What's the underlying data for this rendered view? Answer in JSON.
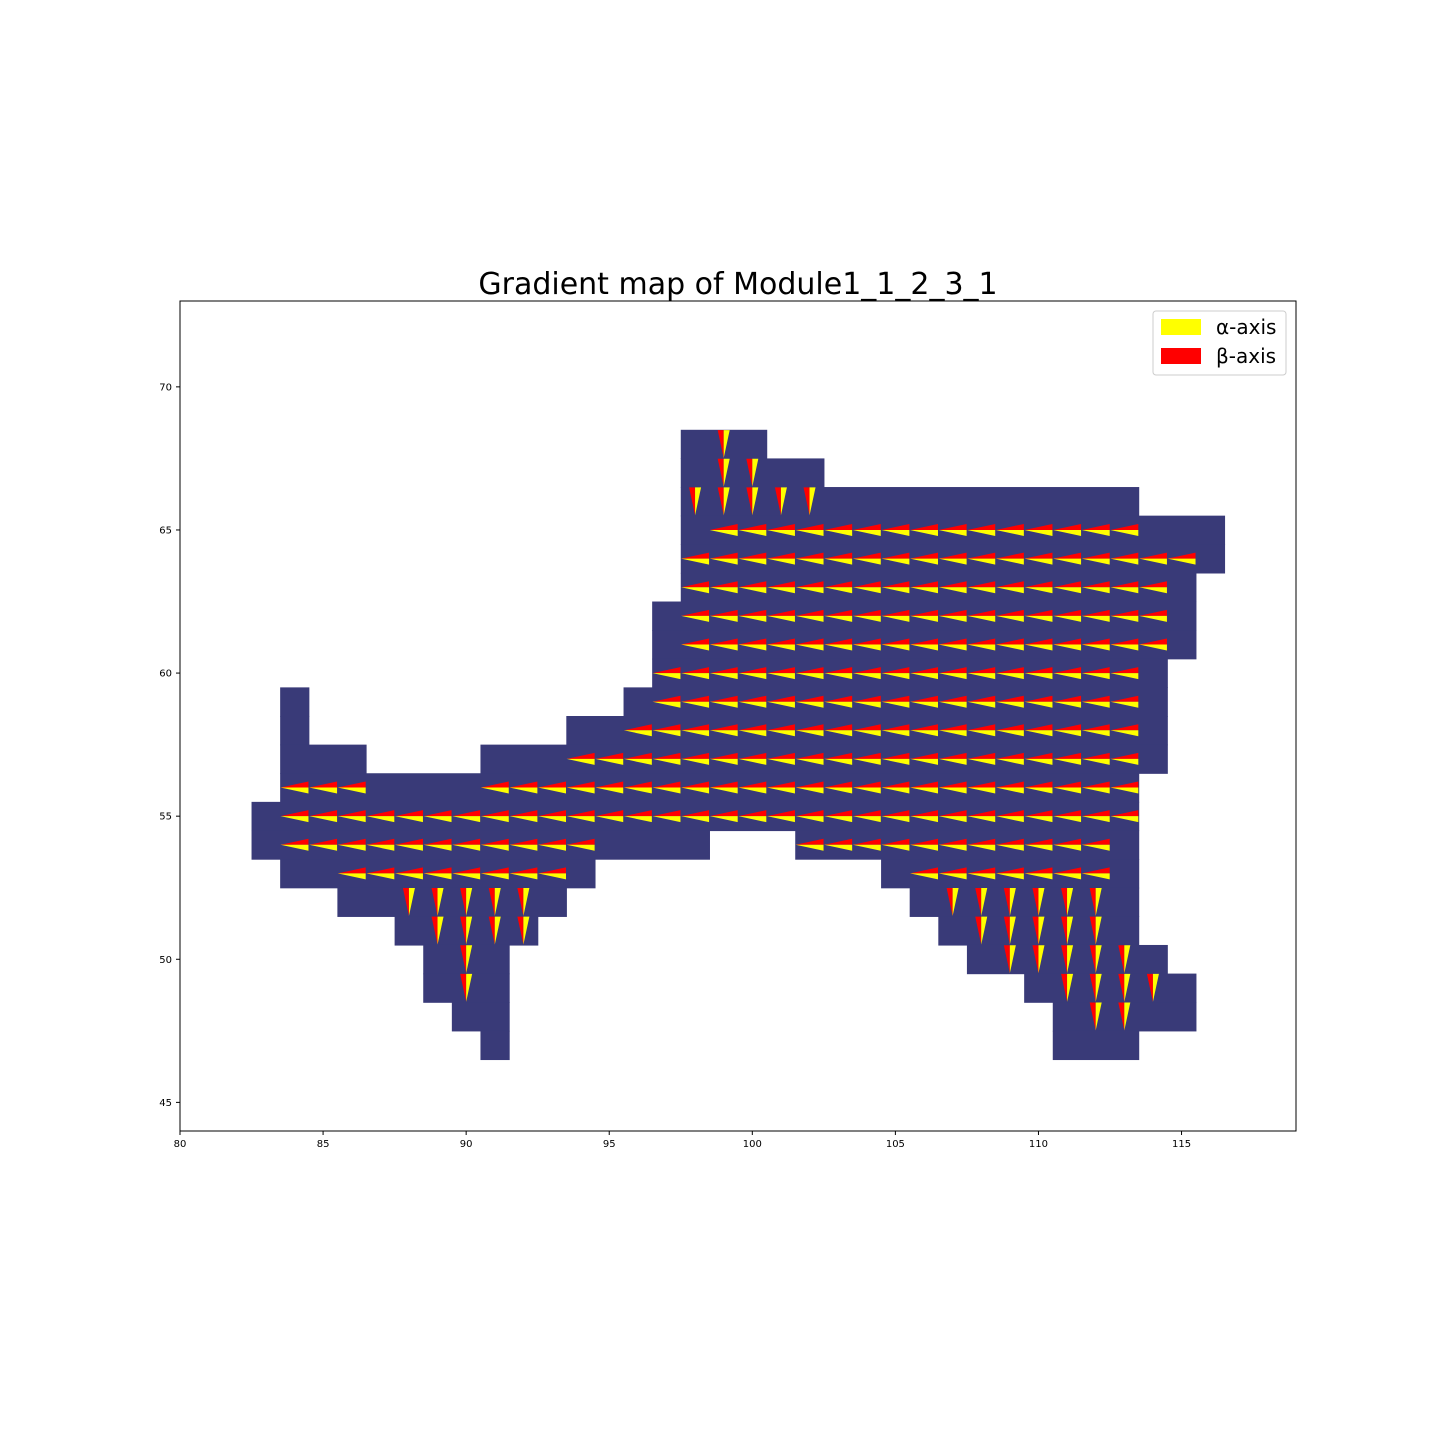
{
  "chart_data": {
    "type": "quiver-map",
    "title": "Gradient map of Module1_1_2_3_1",
    "xlabel": "",
    "ylabel": "",
    "xlim": [
      80,
      119
    ],
    "ylim": [
      44,
      73
    ],
    "xticks": [
      80,
      85,
      90,
      95,
      100,
      105,
      110,
      115
    ],
    "yticks": [
      45,
      50,
      55,
      60,
      65,
      70
    ],
    "grid": false,
    "legend": {
      "position": "top-right",
      "entries": [
        {
          "label": "α-axis",
          "color": "#ffff00"
        },
        {
          "label": "β-axis",
          "color": "#ff0000"
        }
      ]
    },
    "region_color": "#393a78",
    "region_rows": [
      {
        "y": 68,
        "x_ranges": [
          [
            97.5,
            100.5
          ]
        ]
      },
      {
        "y": 67,
        "x_ranges": [
          [
            97.5,
            102.5
          ]
        ]
      },
      {
        "y": 66,
        "x_ranges": [
          [
            97.5,
            113.5
          ]
        ]
      },
      {
        "y": 65,
        "x_ranges": [
          [
            97.5,
            116.5
          ]
        ]
      },
      {
        "y": 64,
        "x_ranges": [
          [
            97.5,
            116.5
          ]
        ]
      },
      {
        "y": 63,
        "x_ranges": [
          [
            97.5,
            115.5
          ]
        ]
      },
      {
        "y": 62,
        "x_ranges": [
          [
            96.5,
            115.5
          ]
        ]
      },
      {
        "y": 61,
        "x_ranges": [
          [
            96.5,
            115.5
          ]
        ]
      },
      {
        "y": 60,
        "x_ranges": [
          [
            96.5,
            114.5
          ]
        ]
      },
      {
        "y": 59,
        "x_ranges": [
          [
            83.5,
            84.5
          ],
          [
            95.5,
            114.5
          ]
        ]
      },
      {
        "y": 58,
        "x_ranges": [
          [
            83.5,
            84.5
          ],
          [
            93.5,
            114.5
          ]
        ]
      },
      {
        "y": 57,
        "x_ranges": [
          [
            83.5,
            86.5
          ],
          [
            90.5,
            114.5
          ]
        ]
      },
      {
        "y": 56,
        "x_ranges": [
          [
            83.5,
            113.5
          ]
        ]
      },
      {
        "y": 55,
        "x_ranges": [
          [
            82.5,
            113.5
          ]
        ]
      },
      {
        "y": 54,
        "x_ranges": [
          [
            82.5,
            98.5
          ],
          [
            101.5,
            113.5
          ]
        ]
      },
      {
        "y": 53,
        "x_ranges": [
          [
            83.5,
            94.5
          ],
          [
            104.5,
            113.5
          ]
        ]
      },
      {
        "y": 52,
        "x_ranges": [
          [
            85.5,
            93.5
          ],
          [
            105.5,
            113.5
          ]
        ]
      },
      {
        "y": 51,
        "x_ranges": [
          [
            87.5,
            92.5
          ],
          [
            106.5,
            113.5
          ]
        ]
      },
      {
        "y": 50,
        "x_ranges": [
          [
            88.5,
            91.5
          ],
          [
            107.5,
            114.5
          ]
        ]
      },
      {
        "y": 49,
        "x_ranges": [
          [
            88.5,
            91.5
          ],
          [
            109.5,
            115.5
          ]
        ]
      },
      {
        "y": 48,
        "x_ranges": [
          [
            89.5,
            91.5
          ],
          [
            110.5,
            115.5
          ]
        ]
      },
      {
        "y": 47,
        "x_ranges": [
          [
            90.5,
            91.5
          ],
          [
            110.5,
            113.5
          ]
        ]
      }
    ],
    "arrow_rows": [
      {
        "y": 68,
        "x_ranges": [
          [
            99,
            99
          ]
        ],
        "direction": "down"
      },
      {
        "y": 67,
        "x_ranges": [
          [
            99,
            100
          ]
        ],
        "direction": "down"
      },
      {
        "y": 66,
        "x_ranges": [
          [
            98,
            102
          ]
        ],
        "direction": "down"
      },
      {
        "y": 65,
        "x_ranges": [
          [
            99,
            113
          ]
        ],
        "direction": "left"
      },
      {
        "y": 64,
        "x_ranges": [
          [
            98,
            115
          ]
        ],
        "direction": "left"
      },
      {
        "y": 63,
        "x_ranges": [
          [
            98,
            114
          ]
        ],
        "direction": "left"
      },
      {
        "y": 62,
        "x_ranges": [
          [
            98,
            114
          ]
        ],
        "direction": "left"
      },
      {
        "y": 61,
        "x_ranges": [
          [
            98,
            114
          ]
        ],
        "direction": "left"
      },
      {
        "y": 60,
        "x_ranges": [
          [
            97,
            113
          ]
        ],
        "direction": "left"
      },
      {
        "y": 59,
        "x_ranges": [
          [
            97,
            113
          ]
        ],
        "direction": "left"
      },
      {
        "y": 58,
        "x_ranges": [
          [
            96,
            113
          ]
        ],
        "direction": "left"
      },
      {
        "y": 57,
        "x_ranges": [
          [
            94,
            113
          ]
        ],
        "direction": "left"
      },
      {
        "y": 56,
        "x_ranges": [
          [
            84,
            86
          ],
          [
            91,
            113
          ]
        ],
        "direction": "left"
      },
      {
        "y": 55,
        "x_ranges": [
          [
            84,
            113
          ]
        ],
        "direction": "left"
      },
      {
        "y": 54,
        "x_ranges": [
          [
            84,
            94
          ],
          [
            102,
            112
          ]
        ],
        "direction": "left"
      },
      {
        "y": 53,
        "x_ranges": [
          [
            86,
            93
          ],
          [
            106,
            112
          ]
        ],
        "direction": "left"
      },
      {
        "y": 52,
        "x_ranges": [
          [
            88,
            92
          ],
          [
            107,
            112
          ]
        ],
        "direction": "down"
      },
      {
        "y": 51,
        "x_ranges": [
          [
            89,
            92
          ],
          [
            108,
            112
          ]
        ],
        "direction": "down"
      },
      {
        "y": 50,
        "x_ranges": [
          [
            90,
            90
          ],
          [
            109,
            113
          ]
        ],
        "direction": "down"
      },
      {
        "y": 49,
        "x_ranges": [
          [
            90,
            90
          ],
          [
            111,
            114
          ]
        ],
        "direction": "down"
      },
      {
        "y": 48,
        "x_ranges": [
          [
            112,
            113
          ]
        ],
        "direction": "down"
      }
    ]
  }
}
